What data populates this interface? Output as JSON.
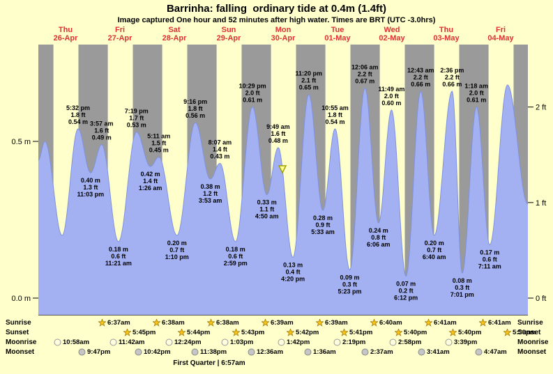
{
  "header": {
    "title": "Barrinha: falling  ordinary tide at 0.4m (1.4ft)",
    "subtitle": "Image captured One hour and 52 minutes after high water. Times are BRT (UTC -3.0hrs)"
  },
  "colors": {
    "page_background": "#ffffcc",
    "night_band": "#9a9a9a",
    "tide_fill": "#a3b1f2",
    "tide_stroke": "#7e92e0",
    "day_label": "#e03030",
    "axis_text": "#000000",
    "marker_fill": "#ffff99",
    "marker_stroke": "#a0a000",
    "sun_icon_fill": "#f5c518",
    "sun_icon_stroke": "#a97b0e",
    "moonrise_icon_fill": "#ffffe0",
    "moonrise_icon_stroke": "#999999",
    "moonset_icon_fill": "#c6c6c6",
    "moonset_icon_stroke": "#888888"
  },
  "chart_data": {
    "type": "area",
    "title": "Barrinha: falling  ordinary tide at 0.4m (1.4ft)",
    "x_axis": {
      "hours_total": 216,
      "days": [
        {
          "weekday": "Thu",
          "date": "26-Apr"
        },
        {
          "weekday": "Fri",
          "date": "27-Apr"
        },
        {
          "weekday": "Sat",
          "date": "28-Apr"
        },
        {
          "weekday": "Sun",
          "date": "29-Apr"
        },
        {
          "weekday": "Mon",
          "date": "30-Apr"
        },
        {
          "weekday": "Tue",
          "date": "01-May"
        },
        {
          "weekday": "Wed",
          "date": "02-May"
        },
        {
          "weekday": "Thu",
          "date": "03-May"
        },
        {
          "weekday": "Fri",
          "date": "04-May"
        }
      ]
    },
    "y_axis": {
      "units_left": "m",
      "units_right": "ft",
      "left_ticks": [
        {
          "label": "0.5 m",
          "h": 0.5
        },
        {
          "label": "0.0 m",
          "h": 0.0
        }
      ],
      "right_ticks": [
        {
          "label": "2 ft",
          "h": 0.6096
        },
        {
          "label": "1 ft",
          "h": 0.3048
        },
        {
          "label": "0 ft",
          "h": 0.0
        }
      ]
    },
    "extremes": [
      {
        "t": 17.53,
        "h": 0.54,
        "kind": "high",
        "lines": [
          "5:32 pm",
          "1.8 ft",
          "0.54 m"
        ]
      },
      {
        "t": 23.05,
        "h": 0.4,
        "kind": "low",
        "lines": [
          "0.40 m",
          "1.3 ft",
          "11:03 pm"
        ]
      },
      {
        "t": 27.95,
        "h": 0.49,
        "kind": "high",
        "lines": [
          "3:57 am",
          "1.6 ft",
          "0.49 m"
        ]
      },
      {
        "t": 35.35,
        "h": 0.18,
        "kind": "low",
        "lines": [
          "0.18 m",
          "0.6 ft",
          "11:21 am"
        ]
      },
      {
        "t": 43.32,
        "h": 0.53,
        "kind": "high",
        "lines": [
          "7:19 pm",
          "1.7 ft",
          "0.53 m"
        ]
      },
      {
        "t": 49.43,
        "h": 0.42,
        "kind": "low",
        "lines": [
          "0.42 m",
          "1.4 ft",
          "1:26 am"
        ]
      },
      {
        "t": 53.18,
        "h": 0.45,
        "kind": "high",
        "lines": [
          "5:11 am",
          "1.5 ft",
          "0.45 m"
        ]
      },
      {
        "t": 61.17,
        "h": 0.2,
        "kind": "low",
        "lines": [
          "0.20 m",
          "0.7 ft",
          "1:10 pm"
        ]
      },
      {
        "t": 69.27,
        "h": 0.56,
        "kind": "high",
        "lines": [
          "9:16 pm",
          "1.8 ft",
          "0.56 m"
        ]
      },
      {
        "t": 75.88,
        "h": 0.38,
        "kind": "low",
        "lines": [
          "0.38 m",
          "1.2 ft",
          "3:53 am"
        ]
      },
      {
        "t": 80.12,
        "h": 0.43,
        "kind": "high",
        "lines": [
          "8:07 am",
          "1.4 ft",
          "0.43 m"
        ]
      },
      {
        "t": 86.98,
        "h": 0.18,
        "kind": "low",
        "lines": [
          "0.18 m",
          "0.6 ft",
          "2:59 pm"
        ]
      },
      {
        "t": 94.48,
        "h": 0.61,
        "kind": "high",
        "lines": [
          "10:29 pm",
          "2.0 ft",
          "0.61 m"
        ]
      },
      {
        "t": 100.83,
        "h": 0.33,
        "kind": "low",
        "lines": [
          "0.33 m",
          "1.1 ft",
          "4:50 am"
        ]
      },
      {
        "t": 105.82,
        "h": 0.48,
        "kind": "high",
        "lines": [
          "9:49 am",
          "1.6 ft",
          "0.48 m"
        ]
      },
      {
        "t": 112.33,
        "h": 0.13,
        "kind": "low",
        "lines": [
          "0.13 m",
          "0.4 ft",
          "4:20 pm"
        ]
      },
      {
        "t": 119.33,
        "h": 0.65,
        "kind": "high",
        "lines": [
          "11:20 pm",
          "2.1 ft",
          "0.65 m"
        ]
      },
      {
        "t": 125.55,
        "h": 0.28,
        "kind": "low",
        "lines": [
          "0.28 m",
          "0.9 ft",
          "5:33 am"
        ]
      },
      {
        "t": 130.92,
        "h": 0.54,
        "kind": "high",
        "lines": [
          "10:55 am",
          "1.8 ft",
          "0.54 m"
        ]
      },
      {
        "t": 137.38,
        "h": 0.09,
        "kind": "low",
        "lines": [
          "0.09 m",
          "0.3 ft",
          "5:23 pm"
        ]
      },
      {
        "t": 144.1,
        "h": 0.67,
        "kind": "high",
        "lines": [
          "12:06 am",
          "2.2 ft",
          "0.67 m"
        ]
      },
      {
        "t": 150.1,
        "h": 0.24,
        "kind": "low",
        "lines": [
          "0.24 m",
          "0.8 ft",
          "6:06 am"
        ]
      },
      {
        "t": 155.82,
        "h": 0.6,
        "kind": "high",
        "lines": [
          "11:49 am",
          "2.0 ft",
          "0.60 m"
        ]
      },
      {
        "t": 162.2,
        "h": 0.07,
        "kind": "low",
        "lines": [
          "0.07 m",
          "0.2 ft",
          "6:12 pm"
        ]
      },
      {
        "t": 168.72,
        "h": 0.66,
        "kind": "high",
        "lines": [
          "12:43 am",
          "2.2 ft",
          "0.66 m"
        ]
      },
      {
        "t": 174.67,
        "h": 0.2,
        "kind": "low",
        "lines": [
          "0.20 m",
          "0.7 ft",
          "6:40 am"
        ]
      },
      {
        "t": 182.6,
        "h": 0.66,
        "kind": "high",
        "lines": [
          "2:36 pm",
          "2.2 ft",
          "0.66 m"
        ]
      },
      {
        "t": 187.02,
        "h": 0.08,
        "kind": "low",
        "lines": [
          "0.08 m",
          "0.3 ft",
          "7:01 pm"
        ]
      },
      {
        "t": 193.3,
        "h": 0.61,
        "kind": "high",
        "lines": [
          "1:18 am",
          "2.0 ft",
          "0.61 m"
        ]
      },
      {
        "t": 199.18,
        "h": 0.17,
        "kind": "low",
        "lines": [
          "0.17 m",
          "0.6 ft",
          "7:11 am"
        ]
      }
    ],
    "unlabeled_curve_points": [
      {
        "t": 0,
        "h": 0.44
      },
      {
        "t": 2.9,
        "h": 0.5
      },
      {
        "t": 10.5,
        "h": 0.2
      },
      {
        "t": 207,
        "h": 0.68
      },
      {
        "t": 216,
        "h": 0.3
      }
    ],
    "current_marker": {
      "t": 107.7,
      "h": 0.4
    },
    "day_night": {
      "sunrise_hour": 6.64,
      "sunset_hour": 17.7
    }
  },
  "astro": {
    "rows": [
      {
        "name": "Sunrise",
        "style": "sun",
        "entries": [
          {
            "t": 30.62,
            "label": "6:37am"
          },
          {
            "t": 54.63,
            "label": "6:38am"
          },
          {
            "t": 78.63,
            "label": "6:38am"
          },
          {
            "t": 102.65,
            "label": "6:39am"
          },
          {
            "t": 126.65,
            "label": "6:39am"
          },
          {
            "t": 150.67,
            "label": "6:40am"
          },
          {
            "t": 174.68,
            "label": "6:41am"
          },
          {
            "t": 198.68,
            "label": "6:41am"
          }
        ]
      },
      {
        "name": "Sunset",
        "style": "sun",
        "entries": [
          {
            "t": 41.75,
            "label": "5:45pm"
          },
          {
            "t": 65.73,
            "label": "5:44pm"
          },
          {
            "t": 89.72,
            "label": "5:43pm"
          },
          {
            "t": 113.7,
            "label": "5:42pm"
          },
          {
            "t": 137.68,
            "label": "5:41pm"
          },
          {
            "t": 161.67,
            "label": "5:40pm"
          },
          {
            "t": 185.67,
            "label": "5:40pm"
          },
          {
            "t": 209.65,
            "label": "5:39pm"
          }
        ]
      },
      {
        "name": "Moonrise",
        "style": "moon-light",
        "entries": [
          {
            "t": 10.97,
            "label": "10:58am"
          },
          {
            "t": 35.7,
            "label": "11:42am"
          },
          {
            "t": 60.4,
            "label": "12:24pm"
          },
          {
            "t": 85.05,
            "label": "1:03pm"
          },
          {
            "t": 109.7,
            "label": "1:42pm"
          },
          {
            "t": 134.32,
            "label": "2:19pm"
          },
          {
            "t": 158.97,
            "label": "2:58pm"
          },
          {
            "t": 183.65,
            "label": "3:39pm"
          }
        ]
      },
      {
        "name": "Moonset",
        "style": "moon-dark",
        "entries": [
          {
            "t": 21.78,
            "label": "9:47pm"
          },
          {
            "t": 46.7,
            "label": "10:42pm"
          },
          {
            "t": 71.63,
            "label": "11:38pm"
          },
          {
            "t": 96.6,
            "label": "12:36am"
          },
          {
            "t": 121.6,
            "label": "1:36am"
          },
          {
            "t": 146.62,
            "label": "2:37am"
          },
          {
            "t": 171.68,
            "label": "3:41am"
          },
          {
            "t": 196.78,
            "label": "4:47am"
          }
        ]
      }
    ],
    "moon_phase": "First Quarter | 6:57am"
  }
}
